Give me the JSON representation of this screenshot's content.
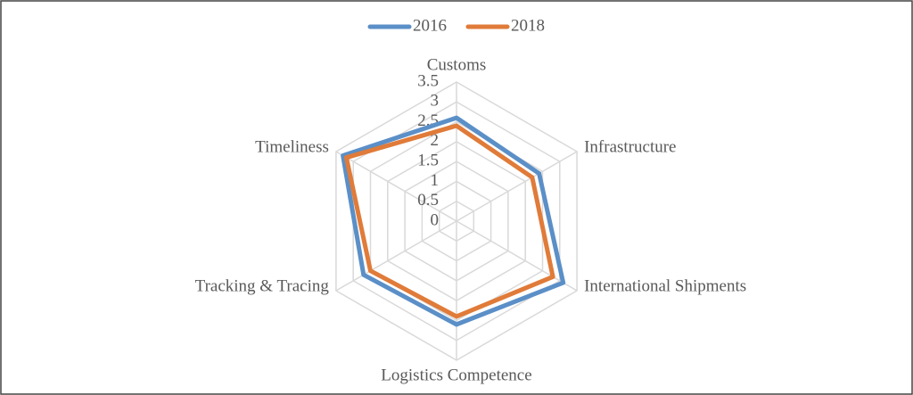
{
  "chart_data": {
    "type": "radar",
    "categories": [
      "Customs",
      "Infrastructure",
      "International Shipments",
      "Logistics Competence",
      "Tracking & Tracing",
      "Timeliness"
    ],
    "series": [
      {
        "name": "2016",
        "color": "#5b8fc7",
        "values": [
          2.6,
          2.4,
          3.1,
          2.6,
          2.7,
          3.3
        ]
      },
      {
        "name": "2018",
        "color": "#e07b39",
        "values": [
          2.4,
          2.2,
          2.8,
          2.4,
          2.5,
          3.2
        ]
      }
    ],
    "ylim": [
      0,
      3.5
    ],
    "yticks": [
      0,
      0.5,
      1,
      1.5,
      2,
      2.5,
      3,
      3.5
    ],
    "grid": true,
    "legend": "top"
  }
}
